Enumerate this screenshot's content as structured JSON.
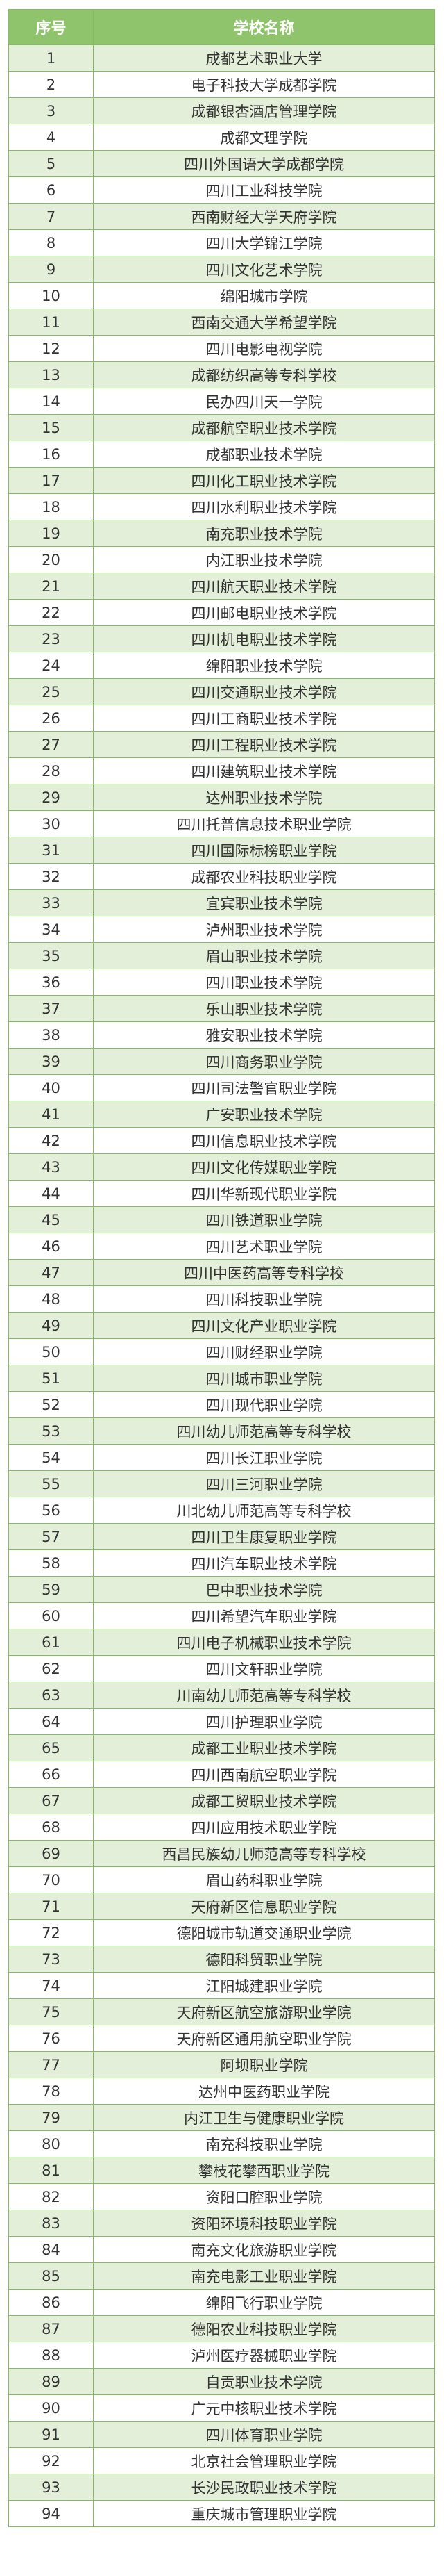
{
  "table": {
    "headers": [
      "序号",
      "学校名称"
    ],
    "colors": {
      "header_bg": "#8fc46c",
      "stripe_bg": "#e4efd9",
      "border": "#86b964"
    },
    "rows": [
      [
        "1",
        "成都艺术职业大学"
      ],
      [
        "2",
        "电子科技大学成都学院"
      ],
      [
        "3",
        "成都银杏酒店管理学院"
      ],
      [
        "4",
        "成都文理学院"
      ],
      [
        "5",
        "四川外国语大学成都学院"
      ],
      [
        "6",
        "四川工业科技学院"
      ],
      [
        "7",
        "西南财经大学天府学院"
      ],
      [
        "8",
        "四川大学锦江学院"
      ],
      [
        "9",
        "四川文化艺术学院"
      ],
      [
        "10",
        "绵阳城市学院"
      ],
      [
        "11",
        "西南交通大学希望学院"
      ],
      [
        "12",
        "四川电影电视学院"
      ],
      [
        "13",
        "成都纺织高等专科学校"
      ],
      [
        "14",
        "民办四川天一学院"
      ],
      [
        "15",
        "成都航空职业技术学院"
      ],
      [
        "16",
        "成都职业技术学院"
      ],
      [
        "17",
        "四川化工职业技术学院"
      ],
      [
        "18",
        "四川水利职业技术学院"
      ],
      [
        "19",
        "南充职业技术学院"
      ],
      [
        "20",
        "内江职业技术学院"
      ],
      [
        "21",
        "四川航天职业技术学院"
      ],
      [
        "22",
        "四川邮电职业技术学院"
      ],
      [
        "23",
        "四川机电职业技术学院"
      ],
      [
        "24",
        "绵阳职业技术学院"
      ],
      [
        "25",
        "四川交通职业技术学院"
      ],
      [
        "26",
        "四川工商职业技术学院"
      ],
      [
        "27",
        "四川工程职业技术学院"
      ],
      [
        "28",
        "四川建筑职业技术学院"
      ],
      [
        "29",
        "达州职业技术学院"
      ],
      [
        "30",
        "四川托普信息技术职业学院"
      ],
      [
        "31",
        "四川国际标榜职业学院"
      ],
      [
        "32",
        "成都农业科技职业学院"
      ],
      [
        "33",
        "宜宾职业技术学院"
      ],
      [
        "34",
        "泸州职业技术学院"
      ],
      [
        "35",
        "眉山职业技术学院"
      ],
      [
        "36",
        "四川职业技术学院"
      ],
      [
        "37",
        "乐山职业技术学院"
      ],
      [
        "38",
        "雅安职业技术学院"
      ],
      [
        "39",
        "四川商务职业学院"
      ],
      [
        "40",
        "四川司法警官职业学院"
      ],
      [
        "41",
        "广安职业技术学院"
      ],
      [
        "42",
        "四川信息职业技术学院"
      ],
      [
        "43",
        "四川文化传媒职业学院"
      ],
      [
        "44",
        "四川华新现代职业学院"
      ],
      [
        "45",
        "四川铁道职业学院"
      ],
      [
        "46",
        "四川艺术职业学院"
      ],
      [
        "47",
        "四川中医药高等专科学校"
      ],
      [
        "48",
        "四川科技职业学院"
      ],
      [
        "49",
        "四川文化产业职业学院"
      ],
      [
        "50",
        "四川财经职业学院"
      ],
      [
        "51",
        "四川城市职业学院"
      ],
      [
        "52",
        "四川现代职业学院"
      ],
      [
        "53",
        "四川幼儿师范高等专科学校"
      ],
      [
        "54",
        "四川长江职业学院"
      ],
      [
        "55",
        "四川三河职业学院"
      ],
      [
        "56",
        "川北幼儿师范高等专科学校"
      ],
      [
        "57",
        "四川卫生康复职业学院"
      ],
      [
        "58",
        "四川汽车职业技术学院"
      ],
      [
        "59",
        "巴中职业技术学院"
      ],
      [
        "60",
        "四川希望汽车职业学院"
      ],
      [
        "61",
        "四川电子机械职业技术学院"
      ],
      [
        "62",
        "四川文轩职业学院"
      ],
      [
        "63",
        "川南幼儿师范高等专科学校"
      ],
      [
        "64",
        "四川护理职业学院"
      ],
      [
        "65",
        "成都工业职业技术学院"
      ],
      [
        "66",
        "四川西南航空职业学院"
      ],
      [
        "67",
        "成都工贸职业技术学院"
      ],
      [
        "68",
        "四川应用技术职业学院"
      ],
      [
        "69",
        "西昌民族幼儿师范高等专科学校"
      ],
      [
        "70",
        "眉山药科职业学院"
      ],
      [
        "71",
        "天府新区信息职业学院"
      ],
      [
        "72",
        "德阳城市轨道交通职业学院"
      ],
      [
        "73",
        "德阳科贸职业学院"
      ],
      [
        "74",
        "江阳城建职业学院"
      ],
      [
        "75",
        "天府新区航空旅游职业学院"
      ],
      [
        "76",
        "天府新区通用航空职业学院"
      ],
      [
        "77",
        "阿坝职业学院"
      ],
      [
        "78",
        "达州中医药职业学院"
      ],
      [
        "79",
        "内江卫生与健康职业学院"
      ],
      [
        "80",
        "南充科技职业学院"
      ],
      [
        "81",
        "攀枝花攀西职业学院"
      ],
      [
        "82",
        "资阳口腔职业学院"
      ],
      [
        "83",
        "资阳环境科技职业学院"
      ],
      [
        "84",
        "南充文化旅游职业学院"
      ],
      [
        "85",
        "南充电影工业职业学院"
      ],
      [
        "86",
        "绵阳飞行职业学院"
      ],
      [
        "87",
        "德阳农业科技职业学院"
      ],
      [
        "88",
        "泸州医疗器械职业学院"
      ],
      [
        "89",
        "自贡职业技术学院"
      ],
      [
        "90",
        "广元中核职业技术学院"
      ],
      [
        "91",
        "四川体育职业学院"
      ],
      [
        "92",
        "北京社会管理职业学院"
      ],
      [
        "93",
        "长沙民政职业技术学院"
      ],
      [
        "94",
        "重庆城市管理职业学院"
      ]
    ]
  }
}
